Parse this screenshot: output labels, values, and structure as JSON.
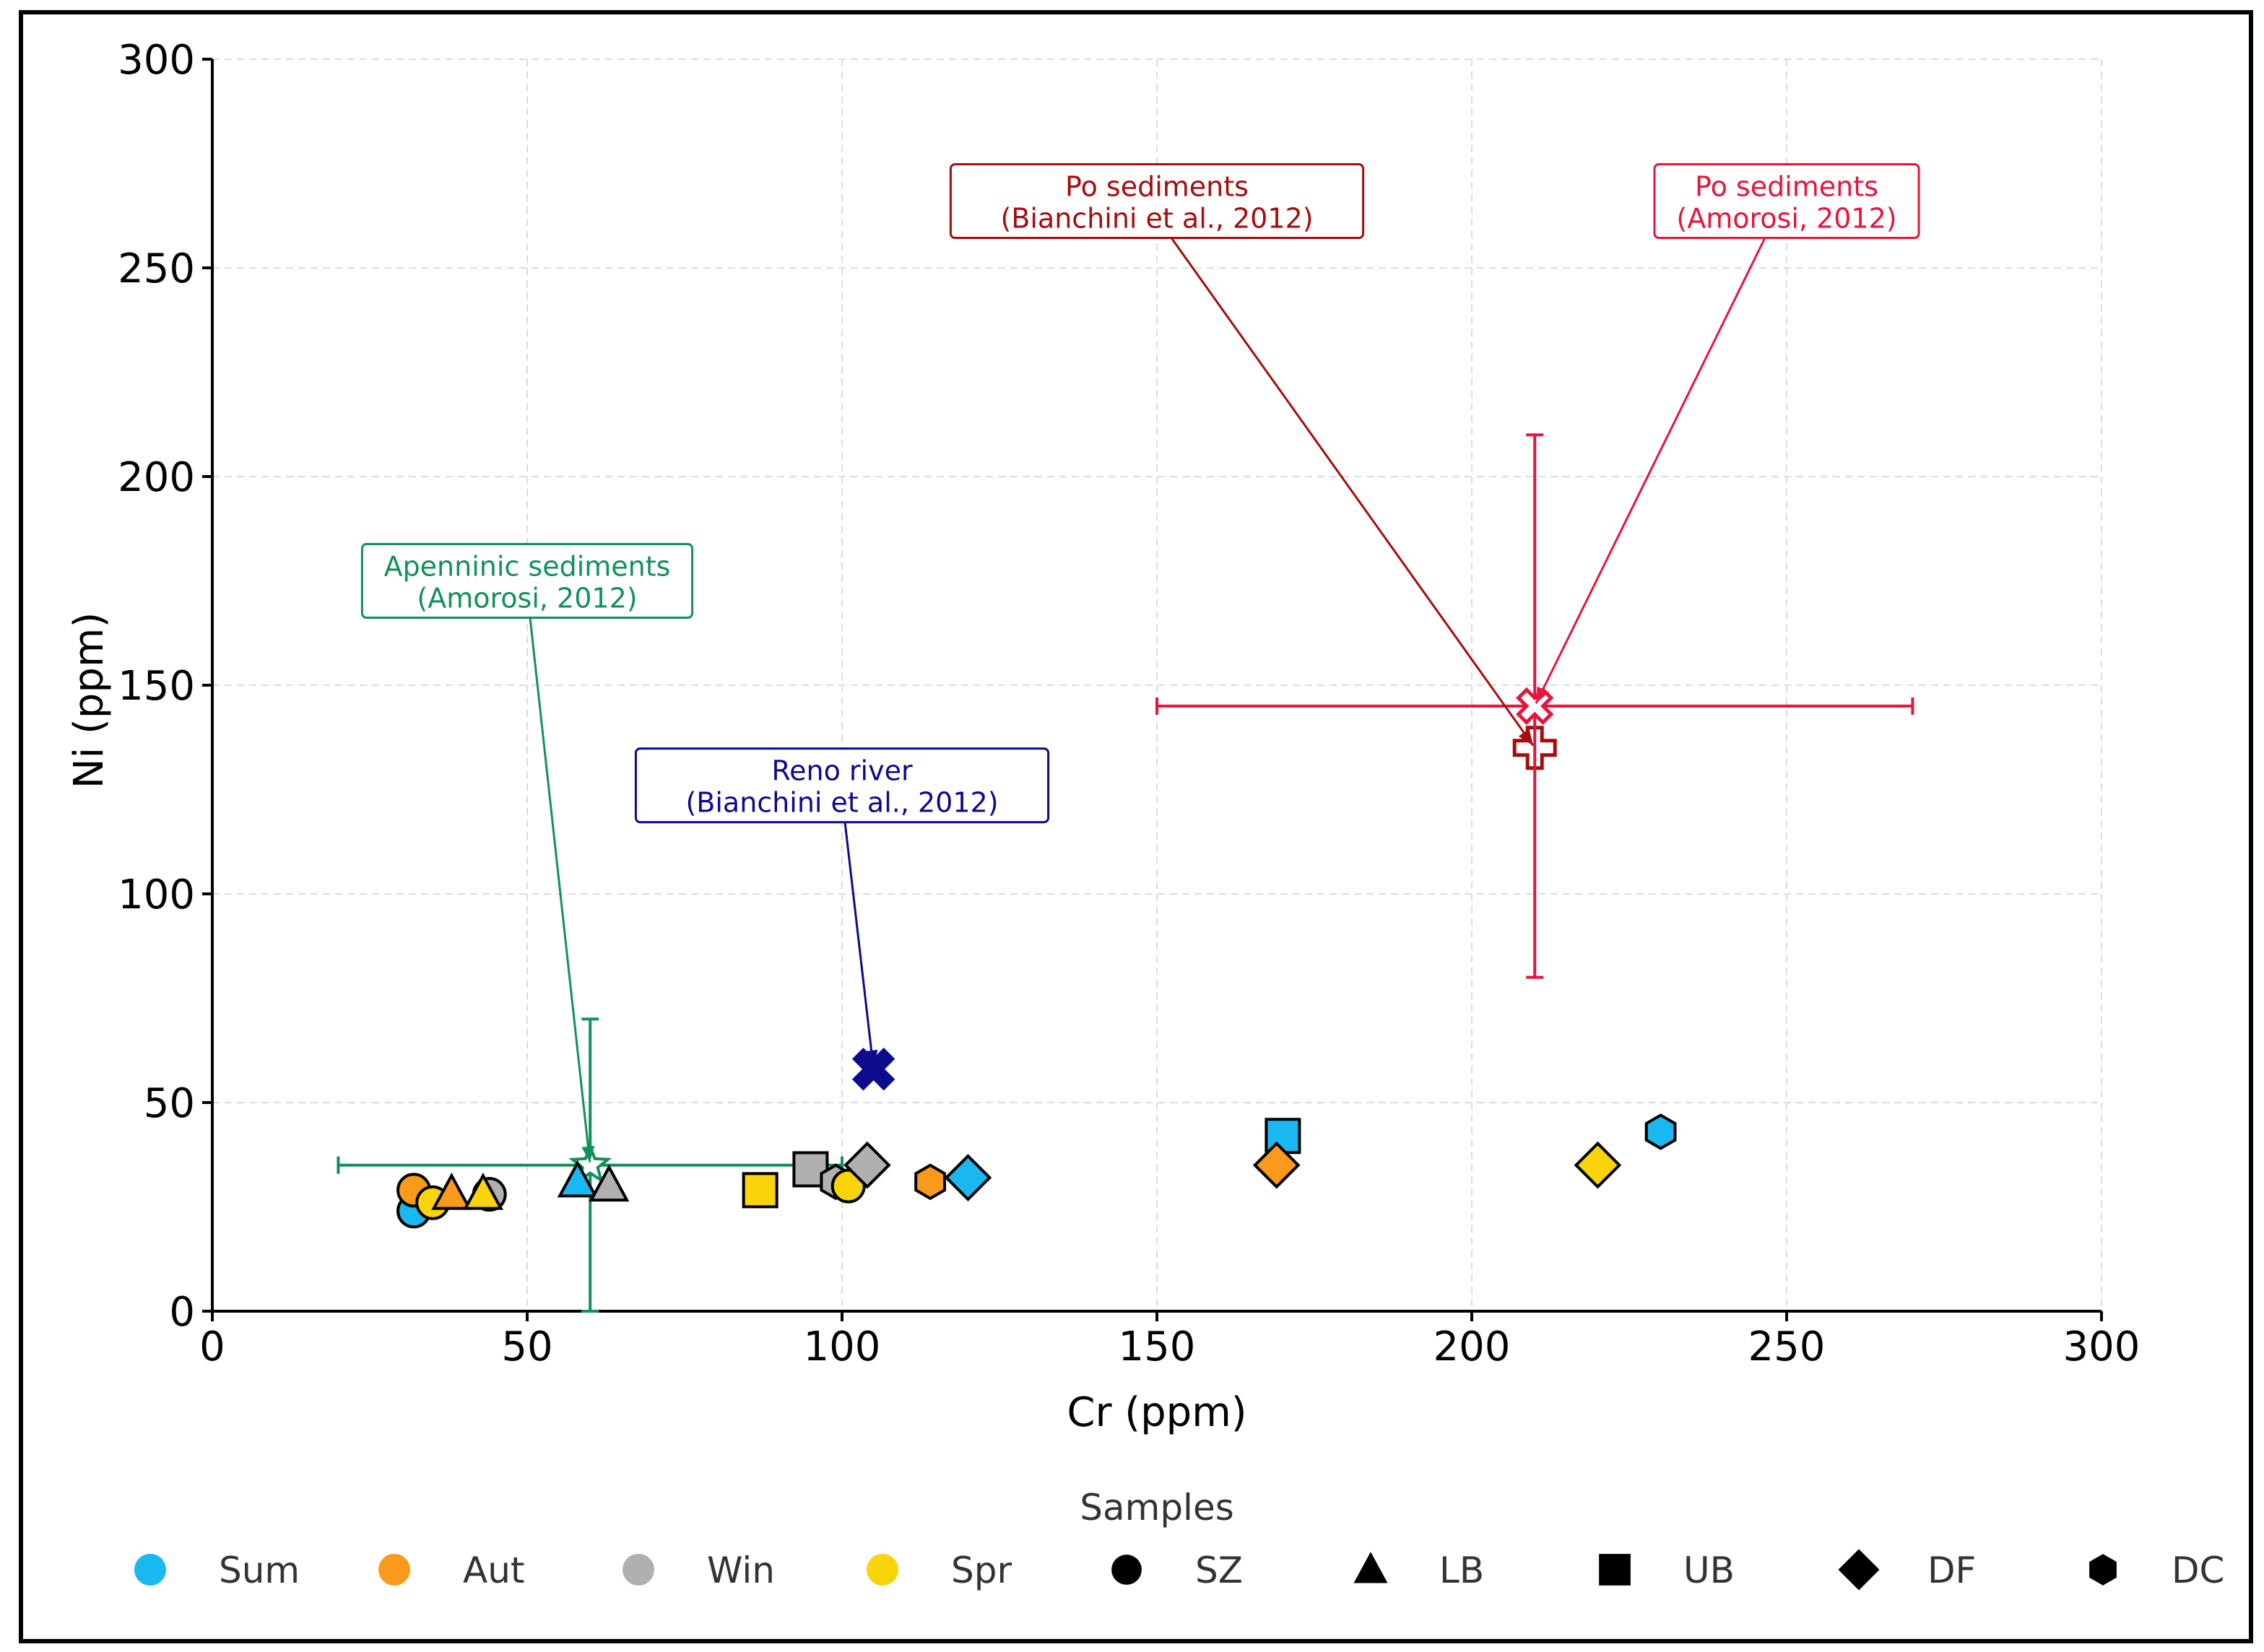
{
  "chart_data": {
    "type": "scatter",
    "title": "",
    "xlabel": "Cr (ppm)",
    "ylabel": "Ni (ppm)",
    "xlim": [
      0,
      300
    ],
    "ylim": [
      0,
      300
    ],
    "xticks": [
      0,
      50,
      100,
      150,
      200,
      250,
      300
    ],
    "yticks": [
      0,
      50,
      100,
      150,
      200,
      250,
      300
    ],
    "grid": true,
    "colors": {
      "Sum": "#1ab8f0",
      "Aut": "#f99a1c",
      "Win": "#b0b0b0",
      "Spr": "#f9d40a",
      "apennine": "#11915a",
      "reno": "#0b0b8c",
      "po_bianchini": "#a50d0d",
      "po_amorosi": "#e8143c"
    },
    "samples": [
      {
        "season": "Sum",
        "site": "SZ",
        "x": 32,
        "y": 24
      },
      {
        "season": "Aut",
        "site": "SZ",
        "x": 32,
        "y": 29
      },
      {
        "season": "Win",
        "site": "SZ",
        "x": 44,
        "y": 28
      },
      {
        "season": "Spr",
        "site": "SZ",
        "x": 35,
        "y": 26
      },
      {
        "season": "Aut",
        "site": "LB",
        "x": 38,
        "y": 28
      },
      {
        "season": "Spr",
        "site": "LB",
        "x": 43,
        "y": 28
      },
      {
        "season": "Sum",
        "site": "LB",
        "x": 58,
        "y": 31
      },
      {
        "season": "Win",
        "site": "LB",
        "x": 63,
        "y": 30
      },
      {
        "season": "Spr",
        "site": "UB",
        "x": 87,
        "y": 29
      },
      {
        "season": "Win",
        "site": "UB",
        "x": 95,
        "y": 34
      },
      {
        "season": "Win",
        "site": "DC",
        "x": 99,
        "y": 31
      },
      {
        "season": "Spr",
        "site": "SZ",
        "x": 101,
        "y": 30
      },
      {
        "season": "Win",
        "site": "DF",
        "x": 104,
        "y": 35
      },
      {
        "season": "Aut",
        "site": "DC",
        "x": 114,
        "y": 31
      },
      {
        "season": "Sum",
        "site": "DF",
        "x": 120,
        "y": 32
      },
      {
        "season": "Sum",
        "site": "UB",
        "x": 170,
        "y": 42
      },
      {
        "season": "Aut",
        "site": "DF",
        "x": 169,
        "y": 35
      },
      {
        "season": "Spr",
        "site": "DF",
        "x": 220,
        "y": 35
      },
      {
        "season": "Sum",
        "site": "DC",
        "x": 230,
        "y": 43
      }
    ],
    "references": [
      {
        "name": "Apenninic sediments",
        "source": "(Amorosi, 2012)",
        "marker": "star",
        "x": 60,
        "y": 35,
        "xerr": [
          20,
          100
        ],
        "yerr": [
          0,
          70
        ],
        "label_lines": [
          "Apenninic sediments",
          "(Amorosi, 2012)"
        ],
        "label_x": 50,
        "label_y": 175
      },
      {
        "name": "Reno river",
        "source": "(Bianchini et al., 2012)",
        "marker": "x",
        "x": 105,
        "y": 58,
        "label_lines": [
          "Reno river",
          "(Bianchini et al., 2012)"
        ],
        "label_x": 100,
        "label_y": 126
      },
      {
        "name": "Po sediments",
        "source": "(Bianchini et al., 2012)",
        "marker": "plus",
        "x": 210,
        "y": 135,
        "label_lines": [
          "Po sediments",
          "(Bianchini et al., 2012)"
        ],
        "label_x": 150,
        "label_y": 266
      },
      {
        "name": "Po sediments",
        "source": "(Amorosi, 2012)",
        "marker": "plus-x",
        "x": 210,
        "y": 145,
        "xerr": [
          150,
          270
        ],
        "yerr": [
          80,
          210
        ],
        "label_lines": [
          "Po sediments",
          "(Amorosi, 2012)"
        ],
        "label_x": 250,
        "label_y": 266
      }
    ],
    "legend": {
      "title": "Samples",
      "placement": "bottom",
      "entries": [
        {
          "label": "Sum",
          "kind": "color",
          "key": "Sum"
        },
        {
          "label": "Aut",
          "kind": "color",
          "key": "Aut"
        },
        {
          "label": "Win",
          "kind": "color",
          "key": "Win"
        },
        {
          "label": "Spr",
          "kind": "color",
          "key": "Spr"
        },
        {
          "label": "SZ",
          "kind": "shape",
          "key": "SZ"
        },
        {
          "label": "LB",
          "kind": "shape",
          "key": "LB"
        },
        {
          "label": "UB",
          "kind": "shape",
          "key": "UB"
        },
        {
          "label": "DF",
          "kind": "shape",
          "key": "DF"
        },
        {
          "label": "DC",
          "kind": "shape",
          "key": "DC"
        }
      ]
    }
  }
}
